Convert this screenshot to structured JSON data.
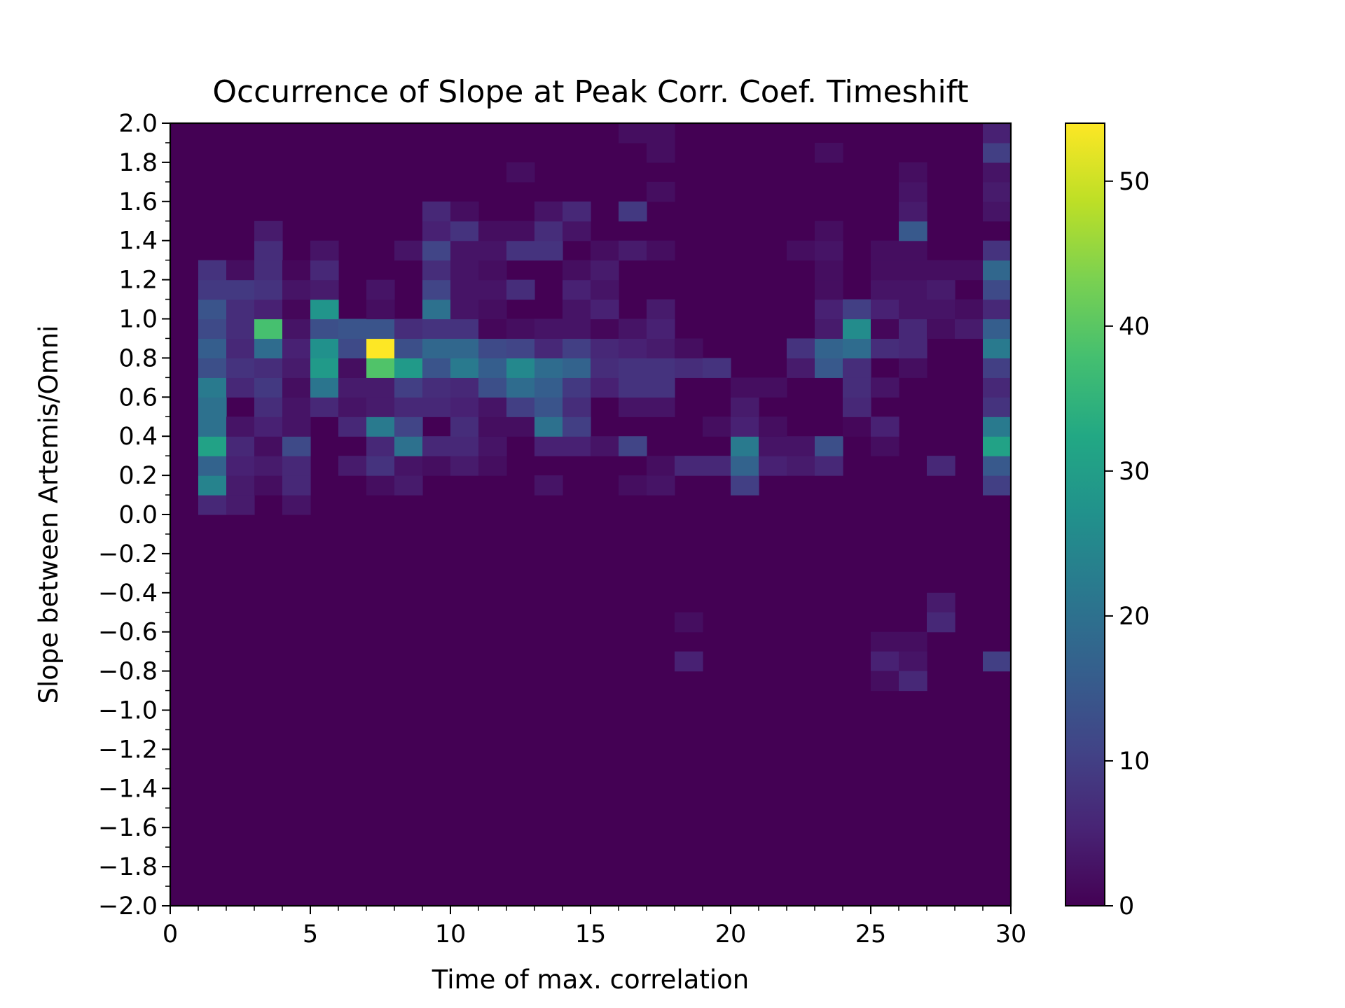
{
  "chart_data": {
    "type": "heatmap",
    "title": "Occurrence of Slope at Peak Corr. Coef. Timeshift",
    "xlabel": "Time of max. correlation",
    "ylabel": "Slope between Artemis/Omni",
    "xlim": [
      0,
      30
    ],
    "ylim": [
      -2.0,
      2.0
    ],
    "x_bin_width": 1,
    "y_bin_width": 0.1,
    "x_ticks": [
      "0",
      "5",
      "10",
      "15",
      "20",
      "25",
      "30"
    ],
    "y_ticks": [
      "−2.0",
      "−1.8",
      "−1.6",
      "−1.4",
      "−1.2",
      "−1.0",
      "−0.8",
      "−0.6",
      "−0.4",
      "−0.2",
      "0.0",
      "0.2",
      "0.4",
      "0.6",
      "0.8",
      "1.0",
      "1.2",
      "1.4",
      "1.6",
      "1.8",
      "2.0"
    ],
    "colormap": "viridis",
    "colorbar": {
      "range": [
        0,
        54
      ],
      "ticks": [
        "0",
        "10",
        "20",
        "30",
        "40",
        "50"
      ]
    },
    "grid": false,
    "legend": "none",
    "cells": [
      [
        1,
        0.0,
        6
      ],
      [
        1,
        0.1,
        24
      ],
      [
        1,
        0.2,
        17
      ],
      [
        1,
        0.3,
        31
      ],
      [
        1,
        0.4,
        20
      ],
      [
        1,
        0.5,
        20
      ],
      [
        1,
        0.6,
        22
      ],
      [
        1,
        0.7,
        13
      ],
      [
        1,
        0.8,
        16
      ],
      [
        1,
        0.9,
        12
      ],
      [
        1,
        1.0,
        14
      ],
      [
        1,
        1.1,
        9
      ],
      [
        1,
        1.2,
        8
      ],
      [
        2,
        0.0,
        4
      ],
      [
        2,
        0.1,
        4
      ],
      [
        2,
        0.2,
        5
      ],
      [
        2,
        0.3,
        6
      ],
      [
        2,
        0.4,
        3
      ],
      [
        2,
        0.6,
        6
      ],
      [
        2,
        0.7,
        8
      ],
      [
        2,
        0.8,
        6
      ],
      [
        2,
        0.9,
        7
      ],
      [
        2,
        1.0,
        7
      ],
      [
        2,
        1.1,
        9
      ],
      [
        2,
        1.2,
        2
      ],
      [
        3,
        0.1,
        2
      ],
      [
        3,
        0.2,
        4
      ],
      [
        3,
        0.3,
        2
      ],
      [
        3,
        0.4,
        5
      ],
      [
        3,
        0.5,
        7
      ],
      [
        3,
        0.6,
        9
      ],
      [
        3,
        0.7,
        7
      ],
      [
        3,
        0.8,
        19
      ],
      [
        3,
        0.9,
        38
      ],
      [
        3,
        1.0,
        5
      ],
      [
        3,
        1.1,
        8
      ],
      [
        3,
        1.2,
        7
      ],
      [
        3,
        1.3,
        7
      ],
      [
        3,
        1.4,
        4
      ],
      [
        4,
        0.0,
        3
      ],
      [
        4,
        0.1,
        6
      ],
      [
        4,
        0.2,
        6
      ],
      [
        4,
        0.3,
        12
      ],
      [
        4,
        0.4,
        3
      ],
      [
        4,
        0.5,
        3
      ],
      [
        4,
        0.6,
        2
      ],
      [
        4,
        0.7,
        4
      ],
      [
        4,
        0.8,
        5
      ],
      [
        4,
        0.9,
        3
      ],
      [
        4,
        1.0,
        1
      ],
      [
        4,
        1.1,
        3
      ],
      [
        4,
        1.2,
        1
      ],
      [
        5,
        0.5,
        6
      ],
      [
        5,
        0.6,
        21
      ],
      [
        5,
        0.7,
        29
      ],
      [
        5,
        0.8,
        27
      ],
      [
        5,
        0.9,
        13
      ],
      [
        5,
        1.0,
        28
      ],
      [
        5,
        1.1,
        4
      ],
      [
        5,
        1.2,
        6
      ],
      [
        5,
        1.3,
        3
      ],
      [
        6,
        0.2,
        4
      ],
      [
        6,
        0.4,
        6
      ],
      [
        6,
        0.5,
        3
      ],
      [
        6,
        0.6,
        4
      ],
      [
        6,
        0.7,
        2
      ],
      [
        6,
        0.8,
        12
      ],
      [
        6,
        0.9,
        14
      ],
      [
        7,
        0.1,
        2
      ],
      [
        7,
        0.2,
        8
      ],
      [
        7,
        0.3,
        6
      ],
      [
        7,
        0.4,
        22
      ],
      [
        7,
        0.5,
        4
      ],
      [
        7,
        0.6,
        4
      ],
      [
        7,
        0.7,
        39
      ],
      [
        7,
        0.8,
        54
      ],
      [
        7,
        0.9,
        14
      ],
      [
        7,
        1.0,
        2
      ],
      [
        7,
        1.1,
        3
      ],
      [
        8,
        0.1,
        4
      ],
      [
        8,
        0.2,
        3
      ],
      [
        8,
        0.3,
        20
      ],
      [
        8,
        0.4,
        11
      ],
      [
        8,
        0.5,
        6
      ],
      [
        8,
        0.6,
        10
      ],
      [
        8,
        0.7,
        29
      ],
      [
        8,
        0.8,
        13
      ],
      [
        8,
        0.9,
        7
      ],
      [
        8,
        1.3,
        3
      ],
      [
        9,
        0.2,
        2
      ],
      [
        9,
        0.3,
        6
      ],
      [
        9,
        0.5,
        6
      ],
      [
        9,
        0.6,
        7
      ],
      [
        9,
        0.7,
        14
      ],
      [
        9,
        0.8,
        18
      ],
      [
        9,
        0.9,
        8
      ],
      [
        9,
        1.0,
        20
      ],
      [
        9,
        1.1,
        11
      ],
      [
        9,
        1.2,
        7
      ],
      [
        9,
        1.3,
        11
      ],
      [
        9,
        1.4,
        5
      ],
      [
        9,
        1.5,
        6
      ],
      [
        10,
        0.2,
        4
      ],
      [
        10,
        0.3,
        6
      ],
      [
        10,
        0.4,
        7
      ],
      [
        10,
        0.5,
        5
      ],
      [
        10,
        0.6,
        6
      ],
      [
        10,
        0.7,
        22
      ],
      [
        10,
        0.8,
        18
      ],
      [
        10,
        0.9,
        8
      ],
      [
        10,
        1.0,
        3
      ],
      [
        10,
        1.1,
        3
      ],
      [
        10,
        1.2,
        3
      ],
      [
        10,
        1.3,
        3
      ],
      [
        10,
        1.4,
        8
      ],
      [
        10,
        1.5,
        2
      ],
      [
        11,
        0.2,
        2
      ],
      [
        11,
        0.3,
        3
      ],
      [
        11,
        0.4,
        2
      ],
      [
        11,
        0.5,
        3
      ],
      [
        11,
        0.6,
        13
      ],
      [
        11,
        0.7,
        16
      ],
      [
        11,
        0.8,
        12
      ],
      [
        11,
        0.9,
        1
      ],
      [
        11,
        1.0,
        2
      ],
      [
        11,
        1.1,
        3
      ],
      [
        11,
        1.2,
        2
      ],
      [
        11,
        1.3,
        3
      ],
      [
        11,
        1.4,
        2
      ],
      [
        12,
        0.4,
        2
      ],
      [
        12,
        0.5,
        10
      ],
      [
        12,
        0.6,
        19
      ],
      [
        12,
        0.7,
        25
      ],
      [
        12,
        0.8,
        11
      ],
      [
        12,
        0.9,
        2
      ],
      [
        12,
        1.1,
        7
      ],
      [
        12,
        1.3,
        8
      ],
      [
        12,
        1.4,
        2
      ],
      [
        12,
        1.7,
        2
      ],
      [
        13,
        0.1,
        3
      ],
      [
        13,
        0.3,
        5
      ],
      [
        13,
        0.4,
        20
      ],
      [
        13,
        0.5,
        14
      ],
      [
        13,
        0.6,
        16
      ],
      [
        13,
        0.7,
        19
      ],
      [
        13,
        0.8,
        6
      ],
      [
        13,
        0.9,
        3
      ],
      [
        13,
        1.3,
        8
      ],
      [
        13,
        1.4,
        7
      ],
      [
        13,
        1.5,
        3
      ],
      [
        14,
        0.3,
        5
      ],
      [
        14,
        0.4,
        10
      ],
      [
        14,
        0.5,
        7
      ],
      [
        14,
        0.6,
        9
      ],
      [
        14,
        0.7,
        17
      ],
      [
        14,
        0.8,
        10
      ],
      [
        14,
        0.9,
        3
      ],
      [
        14,
        1.0,
        3
      ],
      [
        14,
        1.1,
        5
      ],
      [
        14,
        1.2,
        2
      ],
      [
        14,
        1.4,
        3
      ],
      [
        14,
        1.5,
        6
      ],
      [
        15,
        0.3,
        3
      ],
      [
        15,
        0.6,
        5
      ],
      [
        15,
        0.7,
        7
      ],
      [
        15,
        0.8,
        6
      ],
      [
        15,
        0.9,
        1
      ],
      [
        15,
        1.0,
        5
      ],
      [
        15,
        1.1,
        3
      ],
      [
        15,
        1.2,
        4
      ],
      [
        15,
        1.3,
        2
      ],
      [
        16,
        0.1,
        2
      ],
      [
        16,
        0.3,
        11
      ],
      [
        16,
        0.5,
        3
      ],
      [
        16,
        0.6,
        8
      ],
      [
        16,
        0.7,
        8
      ],
      [
        16,
        0.8,
        5
      ],
      [
        16,
        0.9,
        3
      ],
      [
        16,
        1.3,
        4
      ],
      [
        16,
        1.5,
        9
      ],
      [
        16,
        1.9,
        2
      ],
      [
        17,
        0.1,
        3
      ],
      [
        17,
        0.2,
        2
      ],
      [
        17,
        0.5,
        3
      ],
      [
        17,
        0.6,
        8
      ],
      [
        17,
        0.7,
        8
      ],
      [
        17,
        0.8,
        4
      ],
      [
        17,
        0.9,
        5
      ],
      [
        17,
        1.0,
        4
      ],
      [
        17,
        1.3,
        2
      ],
      [
        17,
        1.6,
        2
      ],
      [
        17,
        1.8,
        2
      ],
      [
        17,
        1.9,
        2
      ],
      [
        18,
        0.2,
        6
      ],
      [
        18,
        0.7,
        7
      ],
      [
        18,
        0.8,
        2
      ],
      [
        18,
        -0.6,
        2
      ],
      [
        18,
        -0.8,
        5
      ],
      [
        19,
        0.2,
        6
      ],
      [
        19,
        0.4,
        2
      ],
      [
        19,
        0.7,
        8
      ],
      [
        20,
        0.1,
        10
      ],
      [
        20,
        0.2,
        17
      ],
      [
        20,
        0.3,
        22
      ],
      [
        20,
        0.4,
        5
      ],
      [
        20,
        0.5,
        4
      ],
      [
        20,
        0.6,
        2
      ],
      [
        21,
        0.2,
        5
      ],
      [
        21,
        0.3,
        3
      ],
      [
        21,
        0.4,
        2
      ],
      [
        21,
        0.6,
        2
      ],
      [
        22,
        0.2,
        4
      ],
      [
        22,
        0.3,
        3
      ],
      [
        22,
        0.7,
        4
      ],
      [
        22,
        0.8,
        8
      ],
      [
        22,
        1.3,
        2
      ],
      [
        23,
        0.2,
        6
      ],
      [
        23,
        0.3,
        13
      ],
      [
        23,
        0.7,
        15
      ],
      [
        23,
        0.8,
        17
      ],
      [
        23,
        0.9,
        4
      ],
      [
        23,
        1.0,
        5
      ],
      [
        23,
        1.1,
        2
      ],
      [
        23,
        1.2,
        2
      ],
      [
        23,
        1.3,
        3
      ],
      [
        23,
        1.4,
        2
      ],
      [
        23,
        1.8,
        2
      ],
      [
        24,
        0.4,
        1
      ],
      [
        24,
        0.5,
        6
      ],
      [
        24,
        0.6,
        7
      ],
      [
        24,
        0.7,
        7
      ],
      [
        24,
        0.8,
        19
      ],
      [
        24,
        0.9,
        26
      ],
      [
        24,
        1.0,
        10
      ],
      [
        25,
        0.3,
        2
      ],
      [
        25,
        0.4,
        5
      ],
      [
        25,
        0.6,
        3
      ],
      [
        25,
        0.8,
        7
      ],
      [
        25,
        0.9,
        1
      ],
      [
        25,
        1.0,
        5
      ],
      [
        25,
        1.1,
        3
      ],
      [
        25,
        1.2,
        2
      ],
      [
        25,
        1.3,
        2
      ],
      [
        25,
        -0.7,
        2
      ],
      [
        25,
        -0.8,
        5
      ],
      [
        25,
        -0.9,
        2
      ],
      [
        26,
        0.7,
        2
      ],
      [
        26,
        0.8,
        6
      ],
      [
        26,
        0.9,
        6
      ],
      [
        26,
        1.0,
        3
      ],
      [
        26,
        1.1,
        3
      ],
      [
        26,
        1.2,
        2
      ],
      [
        26,
        1.3,
        2
      ],
      [
        26,
        1.4,
        15
      ],
      [
        26,
        1.5,
        4
      ],
      [
        26,
        1.6,
        3
      ],
      [
        26,
        1.7,
        2
      ],
      [
        26,
        -0.7,
        2
      ],
      [
        26,
        -0.8,
        3
      ],
      [
        26,
        -0.9,
        6
      ],
      [
        27,
        0.2,
        6
      ],
      [
        27,
        0.9,
        2
      ],
      [
        27,
        1.0,
        3
      ],
      [
        27,
        1.1,
        4
      ],
      [
        27,
        1.2,
        2
      ],
      [
        27,
        -0.5,
        4
      ],
      [
        27,
        -0.6,
        6
      ],
      [
        28,
        0.9,
        4
      ],
      [
        28,
        1.0,
        2
      ],
      [
        28,
        1.2,
        2
      ],
      [
        29,
        0.1,
        10
      ],
      [
        29,
        0.2,
        15
      ],
      [
        29,
        0.3,
        31
      ],
      [
        29,
        0.4,
        22
      ],
      [
        29,
        0.5,
        8
      ],
      [
        29,
        0.6,
        6
      ],
      [
        29,
        0.7,
        10
      ],
      [
        29,
        0.8,
        22
      ],
      [
        29,
        0.9,
        16
      ],
      [
        29,
        1.0,
        6
      ],
      [
        29,
        1.1,
        12
      ],
      [
        29,
        1.2,
        18
      ],
      [
        29,
        1.3,
        8
      ],
      [
        29,
        1.5,
        3
      ],
      [
        29,
        1.6,
        4
      ],
      [
        29,
        1.7,
        3
      ],
      [
        29,
        1.8,
        10
      ],
      [
        29,
        1.9,
        5
      ],
      [
        29,
        -0.8,
        10
      ]
    ]
  }
}
